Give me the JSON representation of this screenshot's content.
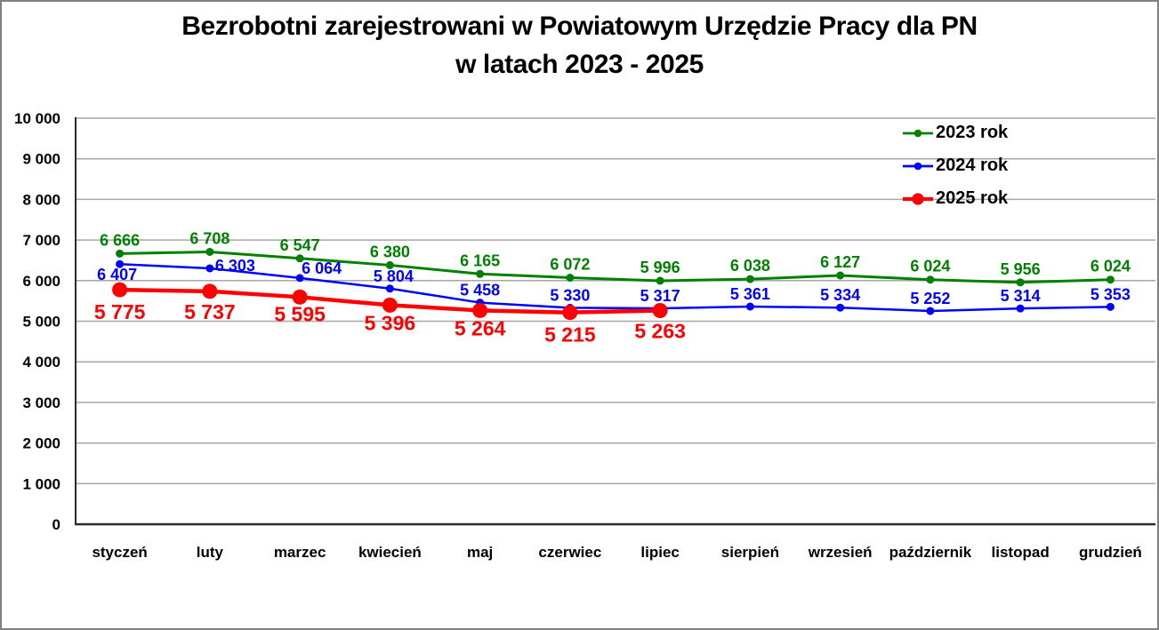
{
  "title": {
    "line1": "Bezrobotni zarejestrowani w Powiatowym Urzędzie Pracy dla PN",
    "line2": "w latach 2023 - 2025"
  },
  "chart_data": {
    "type": "line",
    "title": "Bezrobotni zarejestrowani w Powiatowym Urzędzie Pracy dla PN w latach 2023 - 2025",
    "categories": [
      "styczeń",
      "luty",
      "marzec",
      "kwiecień",
      "maj",
      "czerwiec",
      "lipiec",
      "sierpień",
      "wrzesień",
      "październik",
      "listopad",
      "grudzień"
    ],
    "series": [
      {
        "name": "2023 rok",
        "color": "#008000",
        "values": [
          6666,
          6708,
          6547,
          6380,
          6165,
          6072,
          5996,
          6038,
          6127,
          6024,
          5956,
          6024
        ]
      },
      {
        "name": "2024 rok",
        "color": "#0000FF",
        "values": [
          6407,
          6303,
          6064,
          5804,
          5458,
          5330,
          5317,
          5361,
          5334,
          5252,
          5314,
          5353
        ]
      },
      {
        "name": "2025 rok",
        "color": "#FF0000",
        "values": [
          5775,
          5737,
          5595,
          5396,
          5264,
          5215,
          5263
        ]
      }
    ],
    "ylim": [
      0,
      10000
    ],
    "ytick_step": 1000,
    "ytick_labels": [
      "0",
      "1 000",
      "2 000",
      "3 000",
      "4 000",
      "5 000",
      "6 000",
      "7 000",
      "8 000",
      "9 000",
      "10 000"
    ],
    "grid": "horizontal",
    "gridline_color": "#A6A6A6",
    "axis_color": "#2b2b2b",
    "legend_position": "top-right-inside",
    "number_format": "space-thousands",
    "data_labels": true
  }
}
